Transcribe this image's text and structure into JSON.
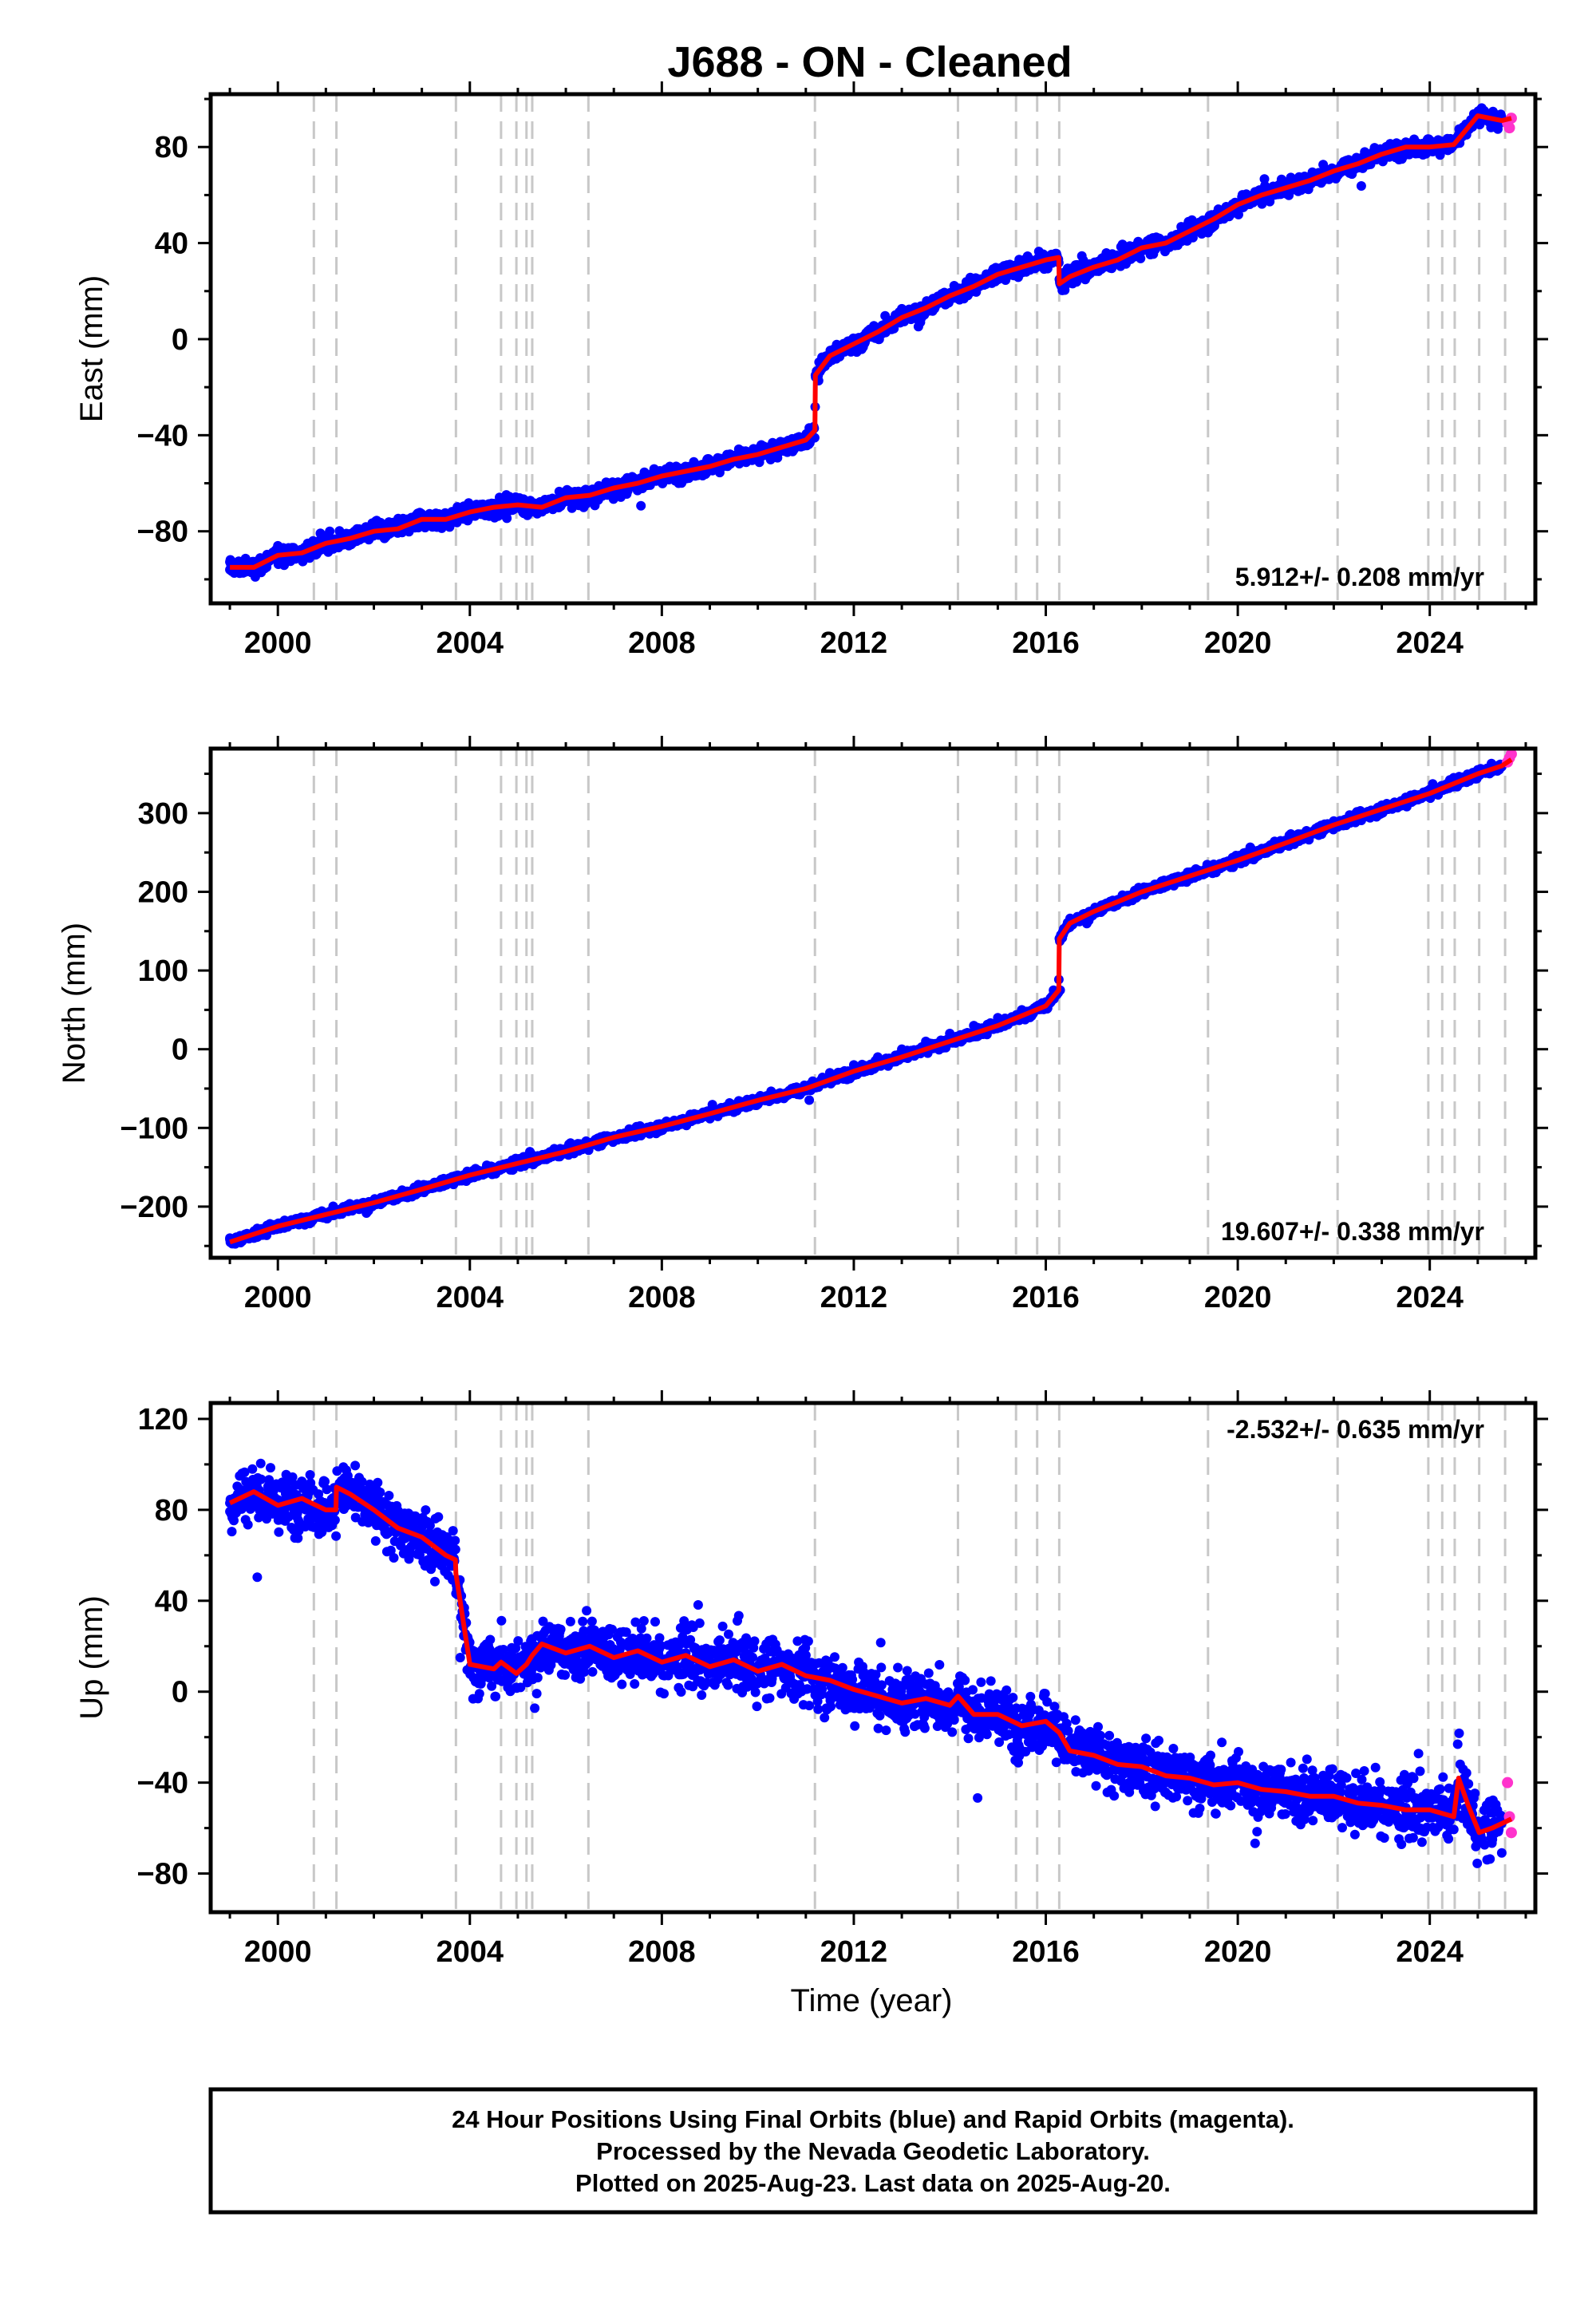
{
  "title": "J688  - ON - Cleaned",
  "colors": {
    "final_orbits": "#0000ff",
    "rapid_orbits": "#ff33cc",
    "model": "#ff0000",
    "event_lines": "#c8c8c8",
    "frame": "#000000"
  },
  "event_lines_years": [
    2000.75,
    2001.22,
    2003.71,
    2004.65,
    2004.97,
    2005.18,
    2005.3,
    2006.47,
    2011.19,
    2014.17,
    2015.38,
    2015.82,
    2016.28,
    2019.38,
    2022.08,
    2023.97,
    2024.26,
    2024.52,
    2025.03,
    2025.57
  ],
  "chart_data": [
    {
      "type": "scatter",
      "name": "east",
      "ylabel": "East (mm)",
      "xlabel": "",
      "xlim": [
        1998.6,
        2026.2
      ],
      "ylim": [
        -110,
        102
      ],
      "xticks": [
        2000,
        2004,
        2008,
        2012,
        2016,
        2020,
        2024
      ],
      "yticks": [
        -80,
        -40,
        0,
        40,
        80
      ],
      "rate_label": "5.912+/- 0.208 mm/yr",
      "rate_position": "bottom-right",
      "series": [
        {
          "role": "final",
          "x": [
            1999.0,
            1999.5,
            2000.0,
            2000.5,
            2001.0,
            2001.5,
            2002.0,
            2002.5,
            2003.0,
            2003.5,
            2004.0,
            2004.5,
            2005.0,
            2005.5,
            2006.0,
            2006.5,
            2007.0,
            2007.5,
            2008.0,
            2008.5,
            2009.0,
            2009.5,
            2010.0,
            2010.5,
            2011.0,
            2011.2,
            2011.5,
            2012.0,
            2012.5,
            2013.0,
            2013.5,
            2014.0,
            2014.5,
            2015.0,
            2015.5,
            2016.0,
            2016.3,
            2016.5,
            2017.0,
            2017.5,
            2018.0,
            2018.5,
            2019.0,
            2019.5,
            2020.0,
            2020.5,
            2021.0,
            2021.5,
            2022.0,
            2022.5,
            2023.0,
            2023.5,
            2024.0,
            2024.5,
            2025.0,
            2025.5
          ],
          "y": [
            -96,
            -95,
            -90,
            -89,
            -85,
            -82,
            -80,
            -79,
            -74,
            -75,
            -72,
            -70,
            -69,
            -70,
            -66,
            -65,
            -61,
            -60,
            -57,
            -55,
            -53,
            -50,
            -49,
            -45,
            -42,
            -15,
            -7,
            -2,
            3,
            10,
            13,
            18,
            22,
            27,
            30,
            33,
            23,
            26,
            30,
            34,
            38,
            40,
            45,
            50,
            56,
            60,
            62,
            65,
            70,
            73,
            77,
            80,
            80,
            82,
            93,
            91
          ]
        },
        {
          "role": "rapid",
          "x": [
            2025.62,
            2025.66,
            2025.7
          ],
          "y": [
            90,
            88,
            92
          ]
        }
      ],
      "model": {
        "x": [
          1999.0,
          1999.5,
          2000.0,
          2000.5,
          2001.0,
          2001.5,
          2002.0,
          2002.5,
          2003.0,
          2003.5,
          2004.0,
          2004.5,
          2005.0,
          2005.5,
          2006.0,
          2006.5,
          2007.0,
          2007.5,
          2008.0,
          2008.5,
          2009.0,
          2009.5,
          2010.0,
          2010.5,
          2011.0,
          2011.19,
          2011.2,
          2011.5,
          2012.0,
          2012.5,
          2013.0,
          2013.5,
          2014.0,
          2014.5,
          2015.0,
          2015.5,
          2016.0,
          2016.27,
          2016.28,
          2016.5,
          2017.0,
          2017.5,
          2018.0,
          2018.5,
          2019.0,
          2019.5,
          2020.0,
          2020.5,
          2021.0,
          2021.5,
          2022.0,
          2022.5,
          2023.0,
          2023.5,
          2024.0,
          2024.5,
          2025.0,
          2025.5,
          2025.7
        ],
        "y": [
          -95,
          -95,
          -90,
          -89,
          -85,
          -83,
          -80,
          -79,
          -75,
          -75,
          -72,
          -70,
          -69,
          -70,
          -66,
          -65,
          -62,
          -60,
          -57,
          -55,
          -53,
          -50,
          -48,
          -45,
          -42,
          -38,
          -15,
          -7,
          -2,
          3,
          9,
          13,
          18,
          22,
          27,
          30,
          33,
          34,
          23,
          26,
          30,
          33,
          38,
          40,
          45,
          50,
          56,
          60,
          63,
          66,
          70,
          73,
          77,
          80,
          80,
          81,
          93,
          91,
          92
        ]
      }
    },
    {
      "type": "scatter",
      "name": "north",
      "ylabel": "North (mm)",
      "xlabel": "",
      "xlim": [
        1998.6,
        2026.2
      ],
      "ylim": [
        -265,
        382
      ],
      "xticks": [
        2000,
        2004,
        2008,
        2012,
        2016,
        2020,
        2024
      ],
      "yticks": [
        -200,
        -100,
        0,
        100,
        200,
        300
      ],
      "rate_label": "19.607+/- 0.338 mm/yr",
      "rate_position": "bottom-right",
      "series": [
        {
          "role": "final",
          "x": [
            1999.0,
            1999.5,
            2000.0,
            2000.5,
            2001.0,
            2001.5,
            2002.0,
            2002.5,
            2003.0,
            2003.5,
            2004.0,
            2004.5,
            2005.0,
            2005.5,
            2006.0,
            2006.5,
            2007.0,
            2007.5,
            2008.0,
            2008.5,
            2009.0,
            2009.5,
            2010.0,
            2010.5,
            2011.0,
            2011.5,
            2012.0,
            2012.5,
            2013.0,
            2013.5,
            2014.0,
            2014.5,
            2015.0,
            2015.5,
            2016.0,
            2016.3,
            2016.5,
            2017.0,
            2017.5,
            2018.0,
            2018.5,
            2019.0,
            2019.5,
            2020.0,
            2020.5,
            2021.0,
            2021.5,
            2022.0,
            2022.5,
            2023.0,
            2023.5,
            2024.0,
            2024.5,
            2025.0,
            2025.5
          ],
          "y": [
            -240,
            -240,
            -225,
            -220,
            -210,
            -205,
            -195,
            -190,
            -180,
            -170,
            -160,
            -155,
            -145,
            -140,
            -130,
            -120,
            -115,
            -110,
            -100,
            -95,
            -85,
            -80,
            -70,
            -60,
            -50,
            -30,
            -20,
            -10,
            0,
            10,
            20,
            30,
            40,
            50,
            60,
            75,
            155,
            175,
            190,
            200,
            210,
            225,
            235,
            245,
            255,
            265,
            275,
            290,
            300,
            310,
            320,
            330,
            345,
            355,
            360
          ]
        },
        {
          "role": "rapid",
          "x": [
            2025.62,
            2025.66,
            2025.7
          ],
          "y": [
            365,
            370,
            375
          ]
        }
      ],
      "model": {
        "x": [
          1999.0,
          2000.0,
          2001.0,
          2002.0,
          2003.0,
          2004.0,
          2005.0,
          2006.0,
          2007.0,
          2008.0,
          2009.0,
          2010.0,
          2011.0,
          2012.0,
          2013.0,
          2014.0,
          2015.0,
          2016.0,
          2016.27,
          2016.28,
          2016.5,
          2017.0,
          2018.0,
          2019.0,
          2020.0,
          2021.0,
          2022.0,
          2023.0,
          2024.0,
          2025.0,
          2025.5,
          2025.7
        ],
        "y": [
          -245,
          -225,
          -210,
          -195,
          -178,
          -160,
          -145,
          -130,
          -112,
          -98,
          -82,
          -65,
          -50,
          -28,
          -10,
          10,
          30,
          55,
          75,
          140,
          160,
          175,
          200,
          220,
          240,
          262,
          285,
          305,
          325,
          350,
          360,
          368
        ]
      }
    },
    {
      "type": "scatter",
      "name": "up",
      "ylabel": "Up (mm)",
      "xlabel": "Time (year)",
      "xlim": [
        1998.6,
        2026.2
      ],
      "ylim": [
        -97,
        127
      ],
      "xticks": [
        2000,
        2004,
        2008,
        2012,
        2016,
        2020,
        2024
      ],
      "yticks": [
        -80,
        -40,
        0,
        40,
        80,
        120
      ],
      "rate_label": "-2.532+/- 0.635 mm/yr",
      "rate_position": "top-right",
      "series": [
        {
          "role": "final",
          "x": [
            1999.0,
            1999.5,
            2000.0,
            2000.5,
            2001.0,
            2001.5,
            2002.0,
            2002.5,
            2003.0,
            2003.5,
            2003.8,
            2004.0,
            2004.5,
            2005.0,
            2005.5,
            2006.0,
            2006.5,
            2007.0,
            2007.5,
            2008.0,
            2008.5,
            2009.0,
            2009.5,
            2010.0,
            2010.5,
            2011.0,
            2011.5,
            2012.0,
            2012.5,
            2013.0,
            2013.5,
            2014.0,
            2014.5,
            2015.0,
            2015.5,
            2016.0,
            2016.5,
            2017.0,
            2017.5,
            2018.0,
            2018.5,
            2019.0,
            2019.5,
            2020.0,
            2020.5,
            2021.0,
            2021.5,
            2022.0,
            2022.5,
            2023.0,
            2023.5,
            2024.0,
            2024.5,
            2025.0,
            2025.5
          ],
          "y": [
            83,
            88,
            82,
            85,
            80,
            90,
            82,
            72,
            68,
            60,
            15,
            10,
            8,
            12,
            18,
            15,
            20,
            14,
            16,
            12,
            17,
            10,
            14,
            9,
            13,
            8,
            5,
            2,
            -2,
            -5,
            -3,
            -8,
            -10,
            -12,
            -15,
            -18,
            -25,
            -28,
            -30,
            -32,
            -35,
            -38,
            -40,
            -40,
            -42,
            -44,
            -45,
            -46,
            -48,
            -50,
            -51,
            -52,
            -54,
            -57,
            -58
          ]
        },
        {
          "role": "rapid",
          "x": [
            2025.62,
            2025.66,
            2025.7
          ],
          "y": [
            -40,
            -55,
            -62
          ]
        }
      ],
      "model": {
        "x": [
          1999.0,
          1999.5,
          2000.0,
          2000.5,
          2001.0,
          2001.21,
          2001.22,
          2001.5,
          2002.0,
          2002.5,
          2003.0,
          2003.5,
          2003.7,
          2003.71,
          2004.0,
          2004.5,
          2004.65,
          2004.97,
          2005.18,
          2005.3,
          2005.5,
          2006.0,
          2006.5,
          2007.0,
          2007.5,
          2008.0,
          2008.5,
          2009.0,
          2009.5,
          2010.0,
          2010.5,
          2011.0,
          2011.5,
          2012.0,
          2012.5,
          2013.0,
          2013.5,
          2014.0,
          2014.17,
          2014.5,
          2015.0,
          2015.5,
          2016.0,
          2016.28,
          2016.5,
          2017.0,
          2017.5,
          2018.0,
          2018.5,
          2019.0,
          2019.5,
          2020.0,
          2020.5,
          2021.0,
          2021.5,
          2022.0,
          2022.5,
          2023.0,
          2023.5,
          2024.0,
          2024.5,
          2024.6,
          2024.8,
          2025.03,
          2025.3,
          2025.6,
          2025.7
        ],
        "y": [
          83,
          88,
          82,
          85,
          80,
          80,
          90,
          87,
          80,
          72,
          68,
          60,
          58,
          52,
          12,
          10,
          13,
          8,
          12,
          16,
          21,
          17,
          20,
          15,
          18,
          13,
          16,
          11,
          14,
          9,
          12,
          7,
          5,
          1,
          -2,
          -5,
          -3,
          -6,
          -2,
          -10,
          -10,
          -15,
          -13,
          -18,
          -26,
          -28,
          -32,
          -33,
          -37,
          -38,
          -41,
          -40,
          -43,
          -44,
          -46,
          -46,
          -49,
          -50,
          -52,
          -52,
          -55,
          -38,
          -50,
          -62,
          -60,
          -57,
          -56
        ]
      }
    }
  ],
  "footer": {
    "line1": "24 Hour Positions Using Final Orbits (blue) and Rapid Orbits (magenta).",
    "line2": "Processed by the Nevada Geodetic Laboratory.",
    "line3": "Plotted on 2025-Aug-23. Last data on 2025-Aug-20."
  }
}
